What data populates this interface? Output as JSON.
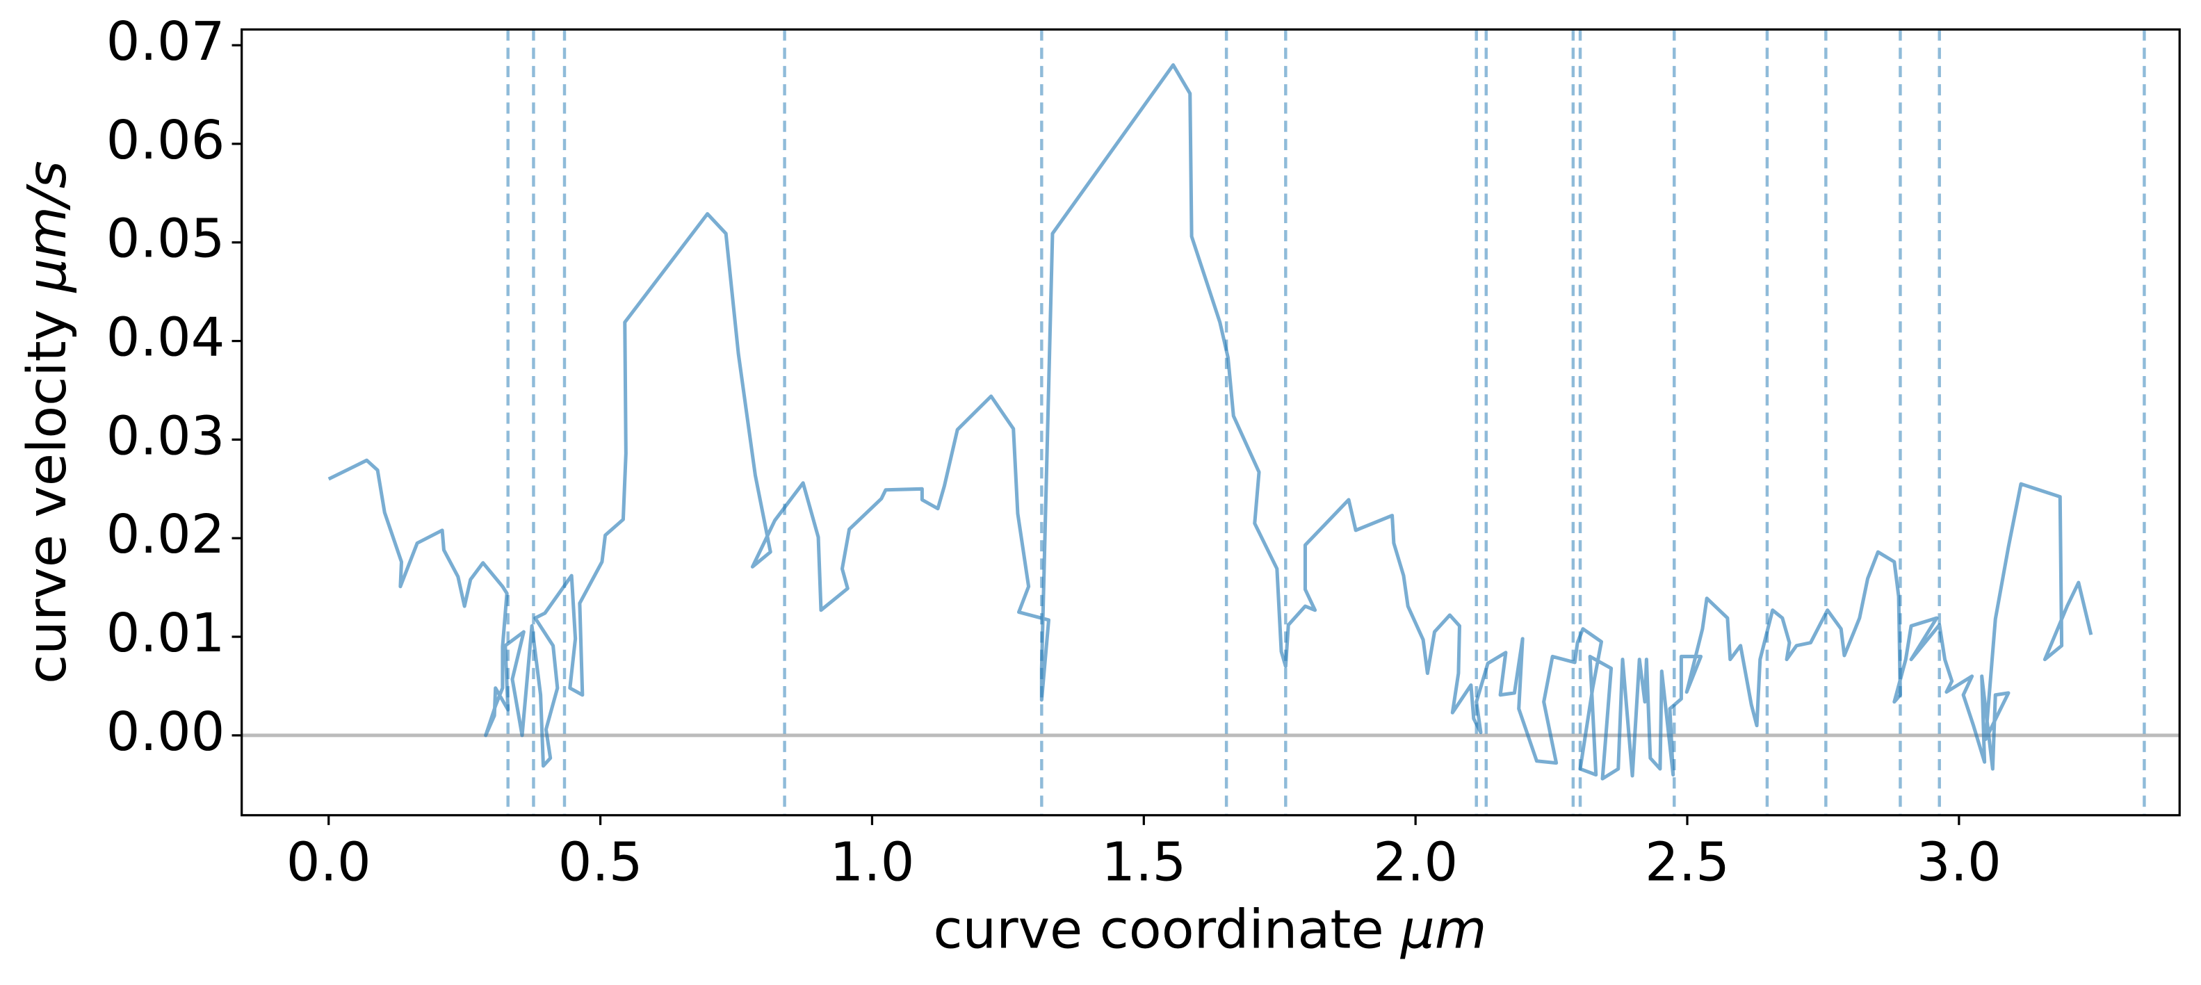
{
  "chart_data": {
    "type": "line",
    "xlabel": "curve coordinate",
    "xlabel_unit": "μm",
    "ylabel": "curve velocity",
    "ylabel_unit": "μm/s",
    "color": "#1f77b4",
    "xlim": [
      -0.16,
      3.406
    ],
    "ylim": [
      -0.0081,
      0.0716
    ],
    "xticks": [
      {
        "value": 0,
        "label": "0.0"
      },
      {
        "value": 0.5,
        "label": "0.5"
      },
      {
        "value": 1,
        "label": "1.0"
      },
      {
        "value": 1.5,
        "label": "1.5"
      },
      {
        "value": 2,
        "label": "2.0"
      },
      {
        "value": 2.5,
        "label": "2.5"
      },
      {
        "value": 3,
        "label": "3.0"
      }
    ],
    "yticks": [
      {
        "value": 0,
        "label": "0.00"
      },
      {
        "value": 0.01,
        "label": "0.01"
      },
      {
        "value": 0.02,
        "label": "0.02"
      },
      {
        "value": 0.03,
        "label": "0.03"
      },
      {
        "value": 0.04,
        "label": "0.04"
      },
      {
        "value": 0.05,
        "label": "0.05"
      },
      {
        "value": 0.06,
        "label": "0.06"
      },
      {
        "value": 0.07,
        "label": "0.07"
      }
    ],
    "hlines": [
      0
    ],
    "vlines": [
      0.33,
      0.377,
      0.434,
      0.839,
      1.312,
      1.652,
      1.761,
      2.112,
      2.13,
      2.29,
      2.303,
      2.476,
      2.647,
      2.755,
      2.892,
      2.964,
      3.341
    ],
    "x": [
      0,
      0.07,
      0.09,
      0.103,
      0.134,
      0.132,
      0.163,
      0.209,
      0.212,
      0.238,
      0.25,
      0.261,
      0.284,
      0.32,
      0.328,
      0.32,
      0.32,
      0.307,
      0.289,
      0.305,
      0.307,
      0.33,
      0.325,
      0.359,
      0.338,
      0.356,
      0.374,
      0.39,
      0.395,
      0.408,
      0.4,
      0.421,
      0.413,
      0.38,
      0.398,
      0.447,
      0.454,
      0.444,
      0.467,
      0.462,
      0.503,
      0.509,
      0.542,
      0.547,
      0.545,
      0.697,
      0.731,
      0.754,
      0.785,
      0.813,
      0.78,
      0.821,
      0.873,
      0.901,
      0.906,
      0.955,
      0.945,
      0.958,
      1.017,
      1.025,
      1.092,
      1.092,
      1.121,
      1.133,
      1.157,
      1.219,
      1.26,
      1.268,
      1.288,
      1.27,
      1.325,
      1.312,
      1.312,
      1.332,
      1.554,
      1.585,
      1.588,
      1.64,
      1.655,
      1.665,
      1.712,
      1.704,
      1.745,
      1.753,
      1.761,
      1.766,
      1.797,
      1.815,
      1.797,
      1.797,
      1.877,
      1.89,
      1.957,
      1.96,
      1.978,
      1.986,
      2.014,
      2.022,
      2.035,
      2.063,
      2.081,
      2.079,
      2.068,
      2.102,
      2.107,
      2.12,
      2.112,
      2.133,
      2.166,
      2.156,
      2.182,
      2.197,
      2.19,
      2.223,
      2.259,
      2.236,
      2.252,
      2.293,
      2.298,
      2.308,
      2.342,
      2.326,
      2.303,
      2.332,
      2.321,
      2.36,
      2.344,
      2.373,
      2.381,
      2.399,
      2.412,
      2.422,
      2.425,
      2.432,
      2.45,
      2.453,
      2.474,
      2.468,
      2.489,
      2.489,
      2.525,
      2.499,
      2.528,
      2.536,
      2.574,
      2.579,
      2.598,
      2.618,
      2.628,
      2.634,
      2.657,
      2.675,
      2.688,
      2.683,
      2.701,
      2.727,
      2.758,
      2.783,
      2.789,
      2.809,
      2.817,
      2.832,
      2.851,
      2.881,
      2.889,
      2.892,
      2.881,
      2.902,
      2.912,
      2.959,
      2.912,
      2.964,
      2.974,
      2.987,
      2.977,
      3.024,
      3.008,
      3.026,
      3.047,
      3.042,
      3.062,
      3.067,
      3.091,
      3.049,
      3.067,
      3.091,
      3.114,
      3.186,
      3.189,
      3.158,
      3.199,
      3.22,
      3.243
    ],
    "values": [
      0.026,
      0.0279,
      0.0269,
      0.0226,
      0.0176,
      0.0151,
      0.0195,
      0.0208,
      0.0188,
      0.0161,
      0.0131,
      0.0158,
      0.0175,
      0.0151,
      0.0144,
      0.009,
      0.0048,
      0.003,
      0,
      0.002,
      0.0048,
      0.0026,
      0.0091,
      0.0105,
      0.0057,
      0,
      0.0111,
      0.0041,
      -0.0031,
      -0.0023,
      0.0006,
      0.0048,
      0.0091,
      0.0119,
      0.0124,
      0.0162,
      0.0098,
      0.0048,
      0.0041,
      0.0134,
      0.0176,
      0.0203,
      0.0219,
      0.0286,
      0.0419,
      0.0529,
      0.0509,
      0.0387,
      0.0264,
      0.0186,
      0.0171,
      0.0218,
      0.0256,
      0.0201,
      0.0127,
      0.0149,
      0.0169,
      0.0209,
      0.024,
      0.0249,
      0.025,
      0.0239,
      0.023,
      0.0253,
      0.031,
      0.0344,
      0.0311,
      0.0225,
      0.0151,
      0.0125,
      0.0117,
      0.0036,
      0.0068,
      0.0509,
      0.068,
      0.0651,
      0.0506,
      0.0419,
      0.0383,
      0.0324,
      0.0267,
      0.0215,
      0.0169,
      0.0085,
      0.007,
      0.0112,
      0.0131,
      0.0127,
      0.0148,
      0.0193,
      0.0239,
      0.0208,
      0.0223,
      0.0195,
      0.0162,
      0.0131,
      0.0097,
      0.0063,
      0.0105,
      0.0122,
      0.0111,
      0.0063,
      0.0023,
      0.0051,
      0.0017,
      0.0003,
      0.0034,
      0.0073,
      0.0084,
      0.0041,
      0.0043,
      0.0098,
      0.0027,
      -0.0026,
      -0.0028,
      0.0034,
      0.008,
      0.0074,
      0.0094,
      0.0108,
      0.0095,
      0.0048,
      -0.0034,
      -0.004,
      0.008,
      0.0068,
      -0.0044,
      -0.0034,
      0.0077,
      -0.0041,
      0.0077,
      0.0034,
      0.0077,
      -0.0023,
      -0.0034,
      0.0065,
      -0.004,
      0.0027,
      0.0037,
      0.008,
      0.008,
      0.0044,
      0.0108,
      0.0139,
      0.0119,
      0.0077,
      0.0091,
      0.0031,
      0.001,
      0.0077,
      0.0127,
      0.0119,
      0.0094,
      0.0077,
      0.0091,
      0.0094,
      0.0127,
      0.0108,
      0.0081,
      0.0108,
      0.0119,
      0.0159,
      0.0186,
      0.0176,
      0.0141,
      0.0041,
      0.0034,
      0.0077,
      0.0111,
      0.0119,
      0.0077,
      0.0112,
      0.0077,
      0.0055,
      0.0044,
      0.006,
      0.0041,
      0.0011,
      -0.0027,
      0.006,
      -0.0034,
      0.0041,
      0.0043,
      -0.0004,
      0.0118,
      0.0191,
      0.0255,
      0.0242,
      0.0091,
      0.0077,
      0.0131,
      0.0155,
      0.0102
    ]
  }
}
